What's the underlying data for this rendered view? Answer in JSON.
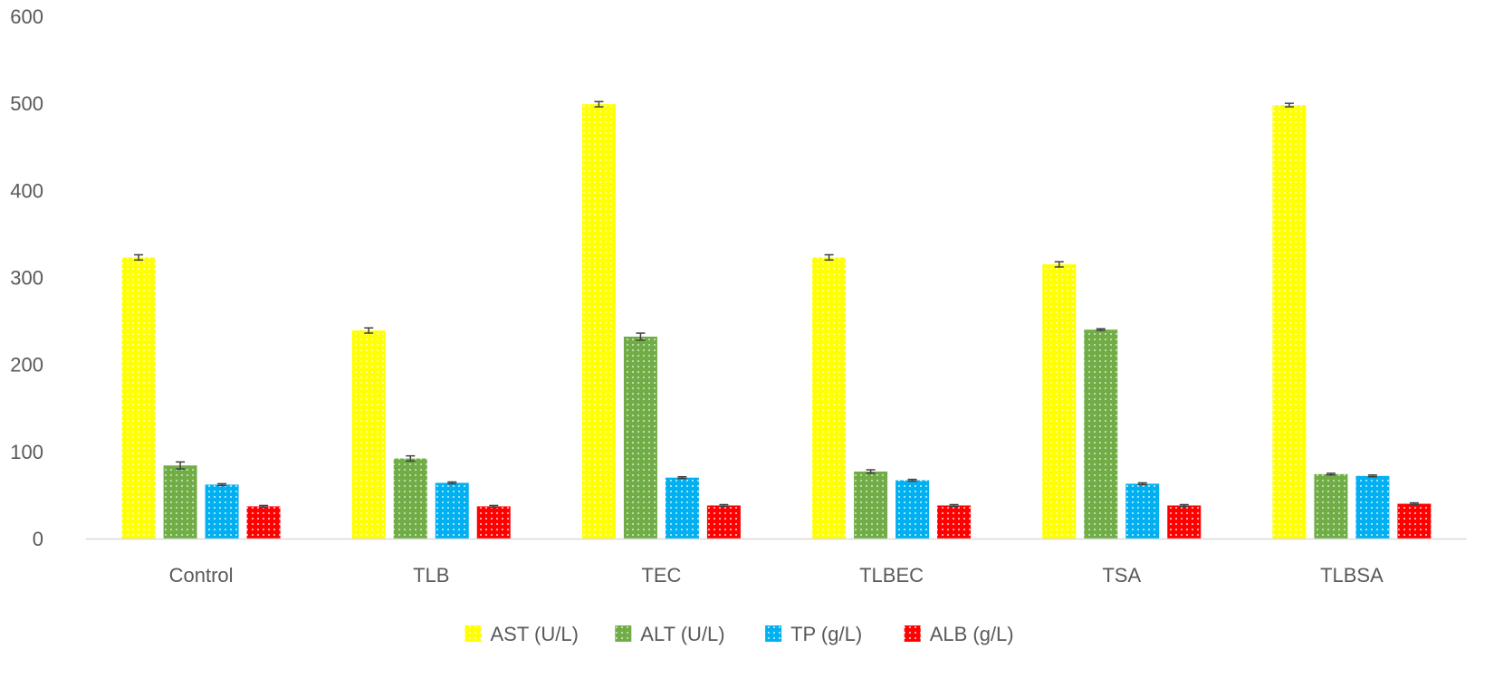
{
  "chart_data": {
    "type": "bar",
    "title": "",
    "xlabel": "",
    "ylabel": "",
    "ylim": [
      0,
      600
    ],
    "yticks": [
      0,
      100,
      200,
      300,
      400,
      500,
      600
    ],
    "grid": false,
    "legend_position": "bottom",
    "categories": [
      "Control",
      "TLB",
      "TEC",
      "TLBEC",
      "TSA",
      "TLBSA"
    ],
    "series": [
      {
        "name": "AST (U/L)",
        "color": "#ffff00",
        "values": [
          323,
          239,
          499,
          323,
          315,
          498
        ],
        "errors": [
          3,
          3,
          3,
          3,
          3,
          2
        ]
      },
      {
        "name": "ALT (U/L)",
        "color": "#70ad47",
        "values": [
          84,
          92,
          232,
          77,
          240,
          74
        ],
        "errors": [
          4,
          3,
          4,
          2,
          1,
          1
        ]
      },
      {
        "name": "TP (g/L)",
        "color": "#00b0f0",
        "values": [
          62,
          64,
          70,
          67,
          63,
          72
        ],
        "errors": [
          1,
          1,
          1,
          1,
          1,
          1
        ]
      },
      {
        "name": "ALB (g/L)",
        "color": "#ff0000",
        "values": [
          37,
          37,
          38,
          38,
          38,
          40
        ],
        "errors": [
          1,
          1,
          1,
          1,
          1,
          1
        ]
      }
    ]
  }
}
